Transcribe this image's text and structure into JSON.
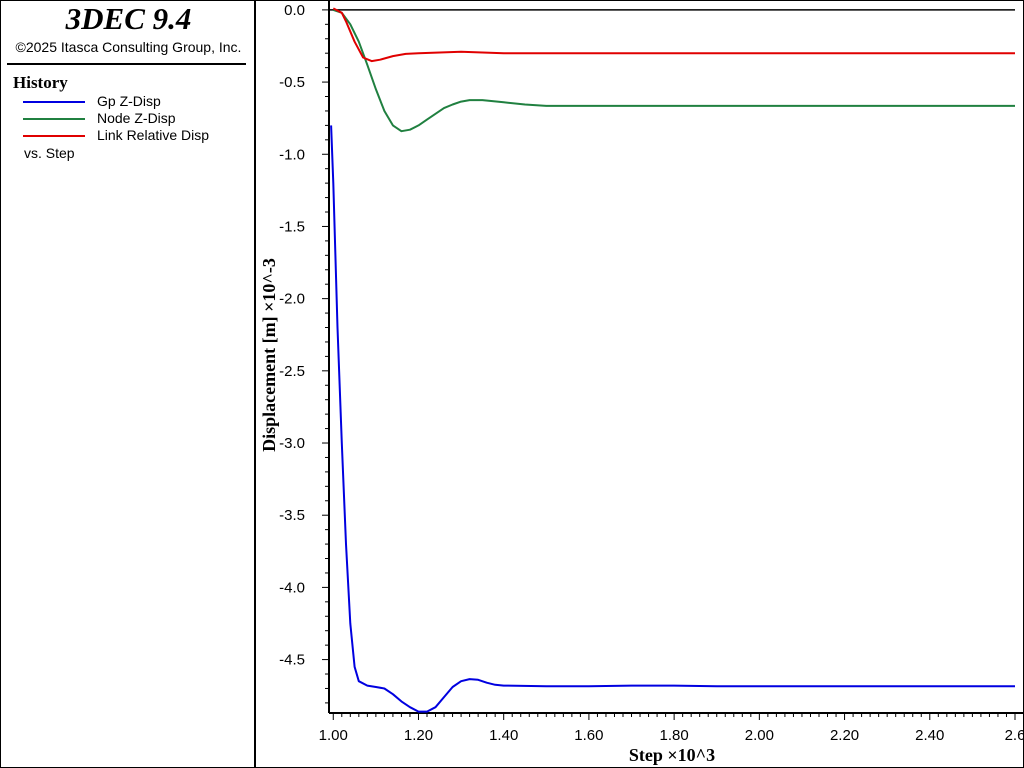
{
  "header": {
    "app_title": "3DEC 9.4",
    "copyright": "©2025 Itasca Consulting Group, Inc."
  },
  "legend": {
    "heading": "History",
    "items": [
      {
        "label": "Gp Z-Disp",
        "color": "#0000e0"
      },
      {
        "label": "Node Z-Disp",
        "color": "#208040"
      },
      {
        "label": "Link Relative Disp",
        "color": "#e00000"
      }
    ],
    "vs_label": "vs. Step"
  },
  "chart_data": {
    "type": "line",
    "xlabel": "Step ×10^3",
    "ylabel": "Displacement [m] ×10^-3",
    "xlim": [
      0.99,
      2.6
    ],
    "ylim": [
      -4.87,
      0.02
    ],
    "x_ticks": [
      1.0,
      1.2,
      1.4,
      1.6,
      1.8,
      2.0,
      2.2,
      2.4,
      2.6
    ],
    "x_tick_labels": [
      "1.00",
      "1.20",
      "1.40",
      "1.60",
      "1.80",
      "2.00",
      "2.20",
      "2.40",
      "2.6"
    ],
    "y_ticks": [
      0.0,
      -0.5,
      -1.0,
      -1.5,
      -2.0,
      -2.5,
      -3.0,
      -3.5,
      -4.0,
      -4.5
    ],
    "y_tick_labels": [
      "0.0",
      "-0.5",
      "-1.0",
      "-1.5",
      "-2.0",
      "-2.5",
      "-3.0",
      "-3.5",
      "-4.0",
      "-4.5"
    ],
    "zero_line": true,
    "grid": false,
    "series": [
      {
        "name": "Gp Z-Disp",
        "color": "#0000e0",
        "points": [
          [
            0.995,
            -0.8
          ],
          [
            1.0,
            -1.2
          ],
          [
            1.01,
            -2.2
          ],
          [
            1.02,
            -3.0
          ],
          [
            1.03,
            -3.7
          ],
          [
            1.04,
            -4.25
          ],
          [
            1.05,
            -4.55
          ],
          [
            1.06,
            -4.65
          ],
          [
            1.08,
            -4.68
          ],
          [
            1.1,
            -4.69
          ],
          [
            1.12,
            -4.7
          ],
          [
            1.14,
            -4.74
          ],
          [
            1.16,
            -4.79
          ],
          [
            1.18,
            -4.83
          ],
          [
            1.2,
            -4.86
          ],
          [
            1.22,
            -4.86
          ],
          [
            1.24,
            -4.83
          ],
          [
            1.26,
            -4.76
          ],
          [
            1.28,
            -4.69
          ],
          [
            1.3,
            -4.65
          ],
          [
            1.32,
            -4.635
          ],
          [
            1.34,
            -4.64
          ],
          [
            1.36,
            -4.66
          ],
          [
            1.38,
            -4.675
          ],
          [
            1.4,
            -4.68
          ],
          [
            1.5,
            -4.685
          ],
          [
            1.6,
            -4.685
          ],
          [
            1.7,
            -4.68
          ],
          [
            1.8,
            -4.68
          ],
          [
            1.9,
            -4.685
          ],
          [
            2.0,
            -4.685
          ],
          [
            2.2,
            -4.685
          ],
          [
            2.4,
            -4.685
          ],
          [
            2.6,
            -4.685
          ]
        ]
      },
      {
        "name": "Node Z-Disp",
        "color": "#208040",
        "points": [
          [
            1.0,
            0.0
          ],
          [
            1.02,
            -0.02
          ],
          [
            1.04,
            -0.1
          ],
          [
            1.06,
            -0.22
          ],
          [
            1.08,
            -0.38
          ],
          [
            1.1,
            -0.55
          ],
          [
            1.12,
            -0.7
          ],
          [
            1.14,
            -0.8
          ],
          [
            1.16,
            -0.84
          ],
          [
            1.18,
            -0.83
          ],
          [
            1.2,
            -0.8
          ],
          [
            1.22,
            -0.76
          ],
          [
            1.24,
            -0.72
          ],
          [
            1.26,
            -0.68
          ],
          [
            1.28,
            -0.655
          ],
          [
            1.3,
            -0.635
          ],
          [
            1.32,
            -0.625
          ],
          [
            1.35,
            -0.625
          ],
          [
            1.4,
            -0.64
          ],
          [
            1.45,
            -0.655
          ],
          [
            1.5,
            -0.665
          ],
          [
            1.6,
            -0.665
          ],
          [
            1.8,
            -0.665
          ],
          [
            2.0,
            -0.665
          ],
          [
            2.2,
            -0.665
          ],
          [
            2.4,
            -0.665
          ],
          [
            2.6,
            -0.665
          ]
        ]
      },
      {
        "name": "Link Relative Disp",
        "color": "#e00000",
        "points": [
          [
            1.0,
            0.01
          ],
          [
            1.02,
            -0.02
          ],
          [
            1.03,
            -0.08
          ],
          [
            1.05,
            -0.22
          ],
          [
            1.07,
            -0.33
          ],
          [
            1.09,
            -0.355
          ],
          [
            1.11,
            -0.345
          ],
          [
            1.14,
            -0.32
          ],
          [
            1.17,
            -0.305
          ],
          [
            1.2,
            -0.3
          ],
          [
            1.3,
            -0.29
          ],
          [
            1.4,
            -0.3
          ],
          [
            1.6,
            -0.3
          ],
          [
            1.8,
            -0.3
          ],
          [
            2.0,
            -0.3
          ],
          [
            2.2,
            -0.3
          ],
          [
            2.4,
            -0.3
          ],
          [
            2.6,
            -0.3
          ]
        ]
      }
    ]
  }
}
